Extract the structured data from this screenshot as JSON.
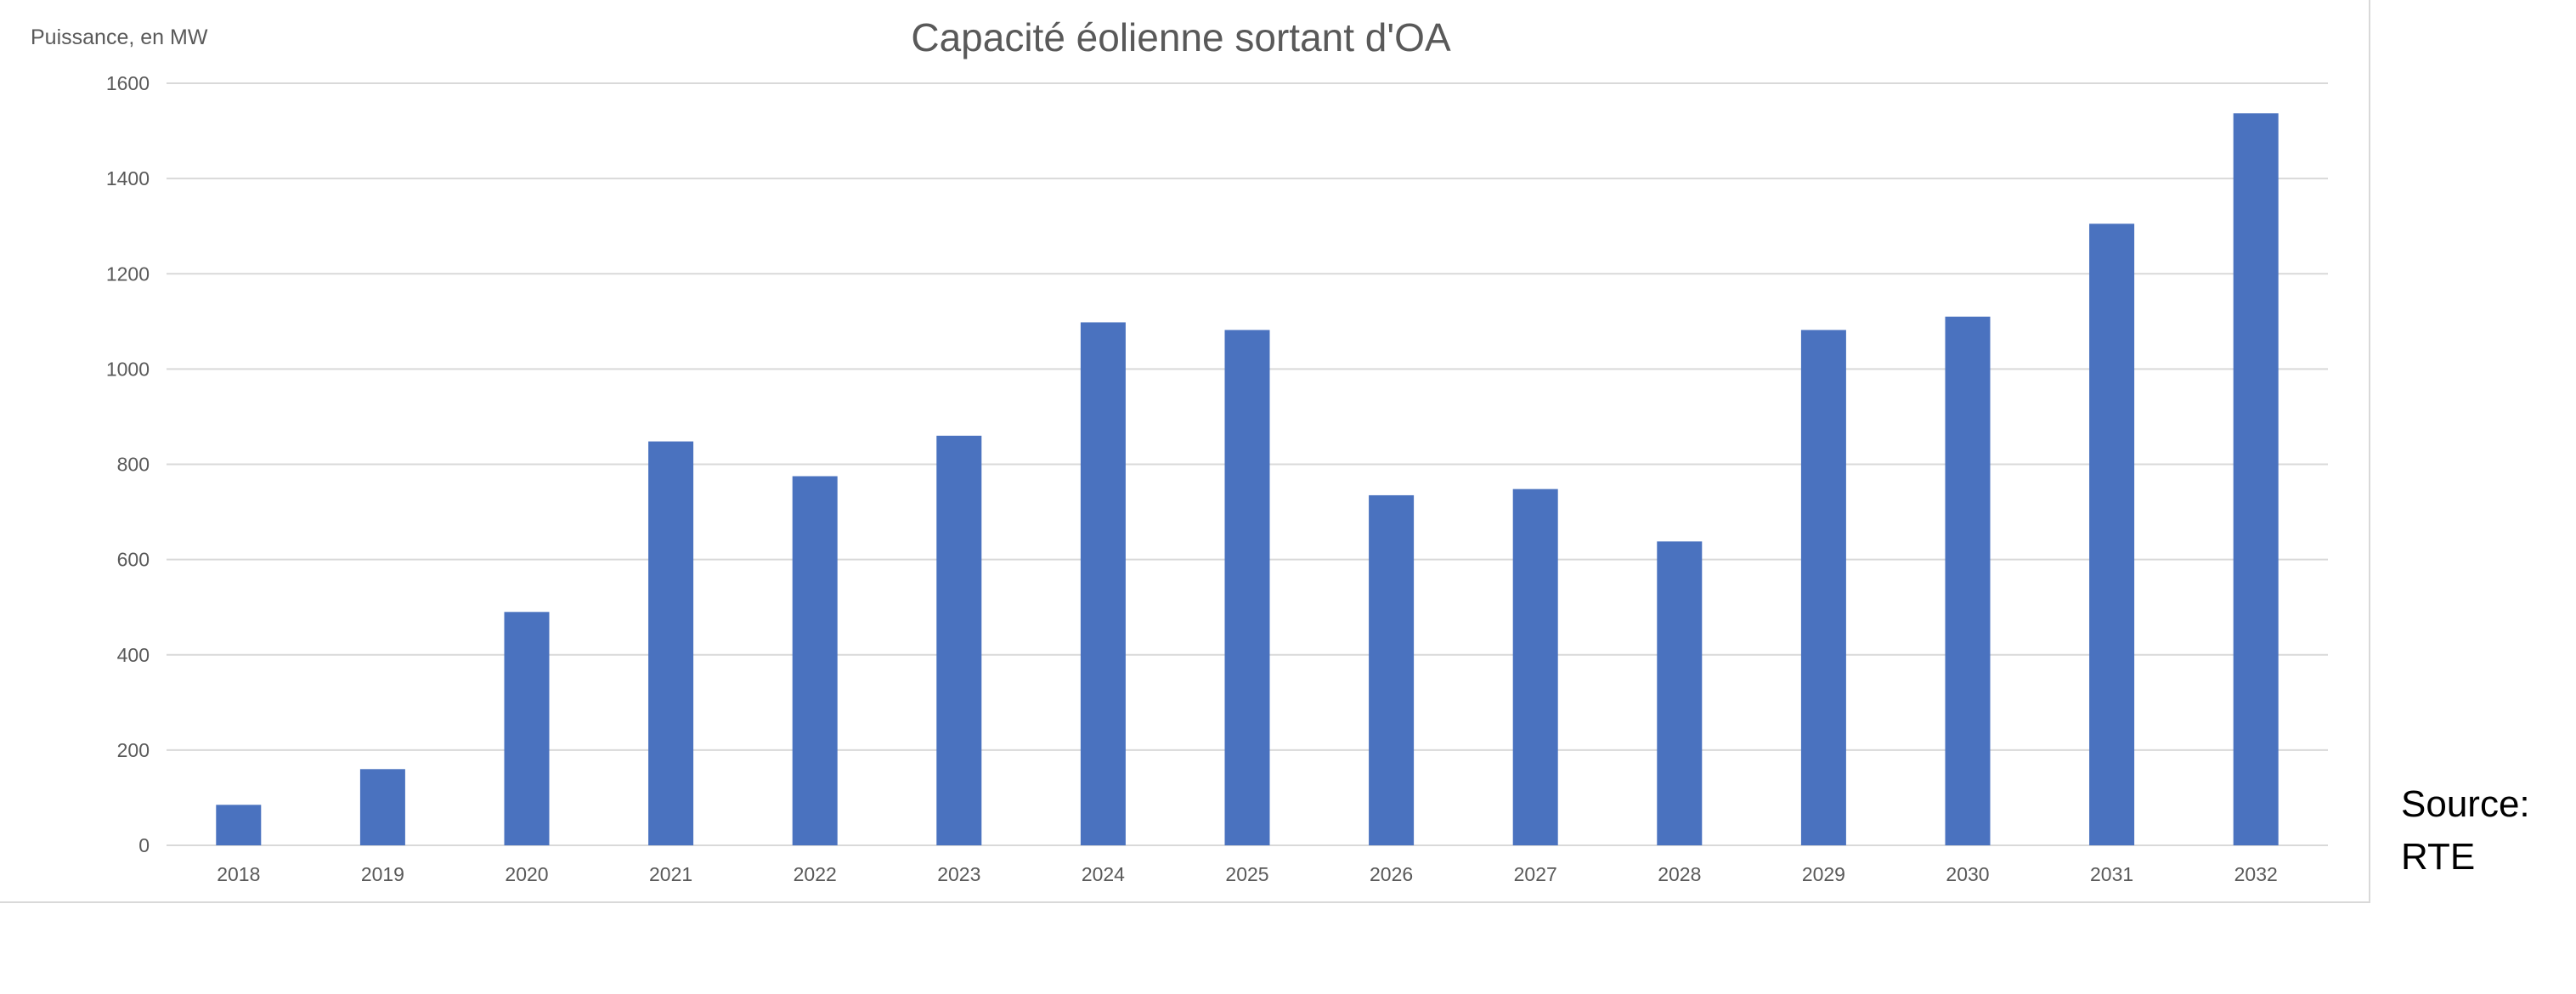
{
  "chart_data": {
    "type": "bar",
    "title": "Capacité éolienne sortant d'OA",
    "ylabel": "Puissance, en MW",
    "xlabel": "",
    "categories": [
      "2018",
      "2019",
      "2020",
      "2021",
      "2022",
      "2023",
      "2024",
      "2025",
      "2026",
      "2027",
      "2028",
      "2029",
      "2030",
      "2031",
      "2032"
    ],
    "values": [
      85,
      160,
      490,
      848,
      775,
      860,
      1098,
      1082,
      735,
      748,
      638,
      1082,
      1110,
      1305,
      1537
    ],
    "ylim": [
      0,
      1600
    ],
    "yticks": [
      0,
      200,
      400,
      600,
      800,
      1000,
      1200,
      1400,
      1600
    ],
    "grid": true,
    "legend": "none",
    "bar_color": "#4a72bf",
    "grid_color": "#d9d9d9"
  },
  "annotation": {
    "line1": "Source:",
    "line2": "RTE"
  }
}
